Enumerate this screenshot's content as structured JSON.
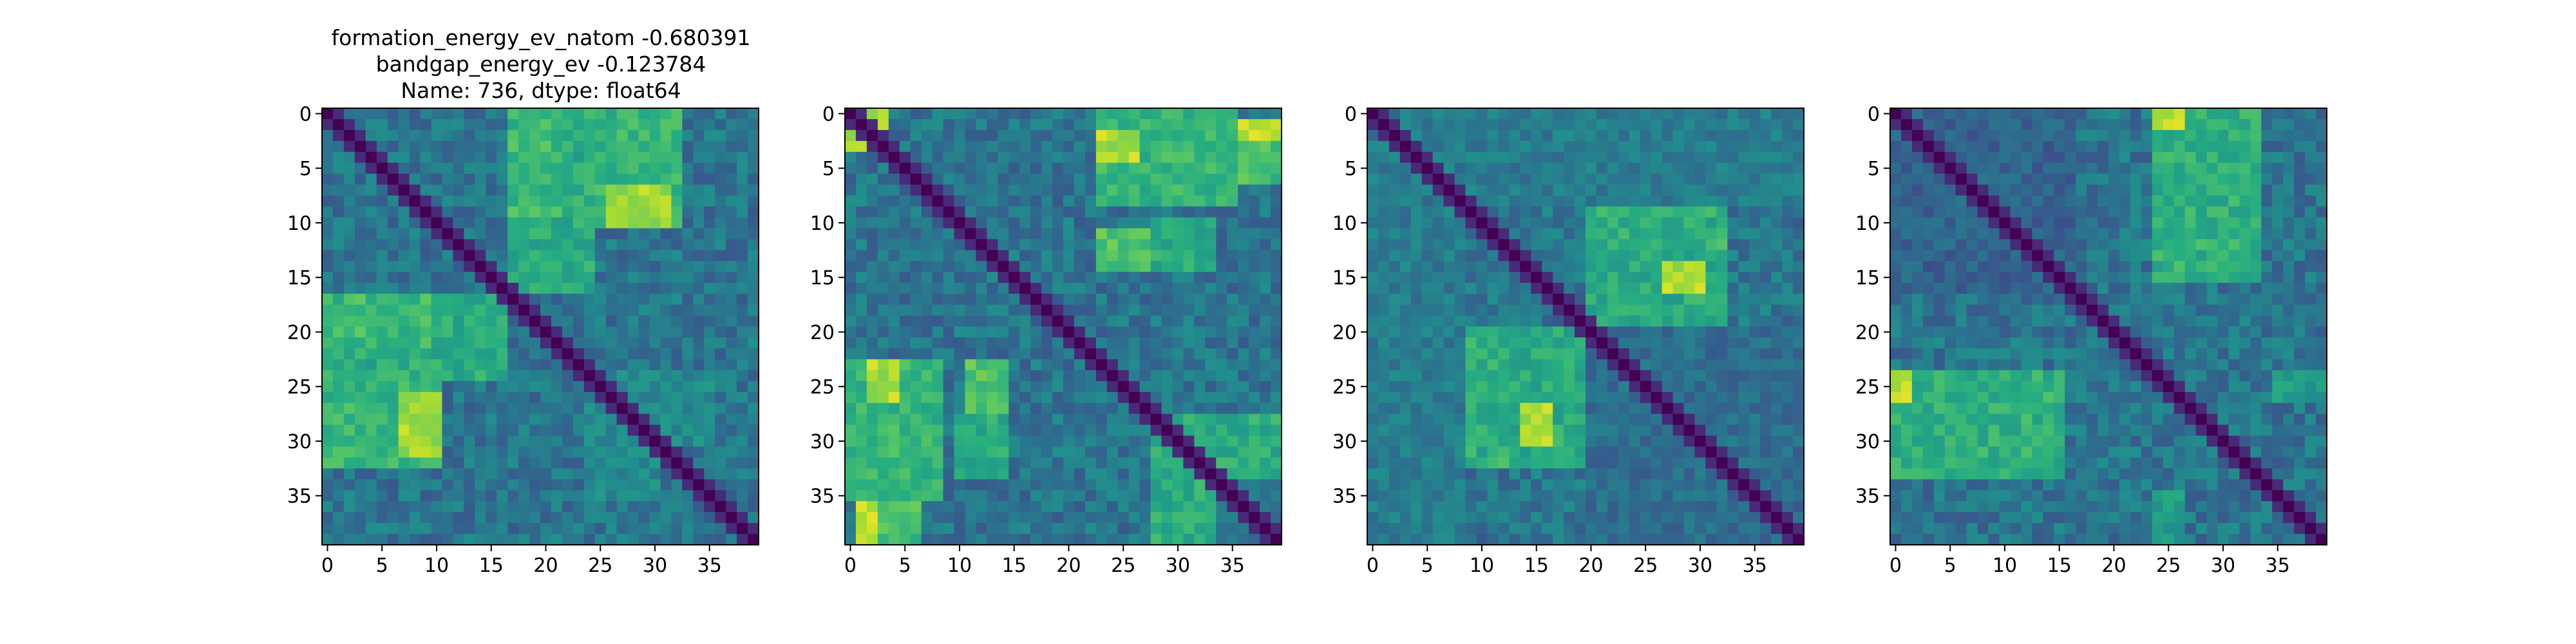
{
  "figure": {
    "title_lines": [
      "formation_energy_ev_natom   -0.680391",
      "bandgap_energy_ev          -0.123784",
      "Name: 736, dtype: float64"
    ]
  },
  "chart_data": [
    {
      "type": "heatmap",
      "title": "formation_energy_ev_natom   -0.680391\nbandgap_energy_ev          -0.123784\nName: 736, dtype: float64",
      "size": 40,
      "x_ticks": [
        0,
        5,
        10,
        15,
        20,
        25,
        30,
        35
      ],
      "y_ticks": [
        0,
        5,
        10,
        15,
        20,
        25,
        30,
        35
      ],
      "xlim": [
        -0.5,
        39.5
      ],
      "ylim": [
        39.5,
        -0.5
      ],
      "colormap": "viridis",
      "vmin": 0,
      "vmax": 1,
      "diagonal": 0,
      "blocks": [
        {
          "rows": [
            0,
            16
          ],
          "cols": [
            17,
            24
          ],
          "value": 0.62
        },
        {
          "rows": [
            4,
            9
          ],
          "cols": [
            27,
            32
          ],
          "value": 0.78
        },
        {
          "rows": [
            7,
            9
          ],
          "cols": [
            29,
            31
          ],
          "value": 0.95
        },
        {
          "rows": [
            17,
            21
          ],
          "cols": [
            0,
            9
          ],
          "value": 0.68
        },
        {
          "rows": [
            24,
            32
          ],
          "cols": [
            0,
            10
          ],
          "value": 0.66
        },
        {
          "rows": [
            26,
            31
          ],
          "cols": [
            7,
            10
          ],
          "value": 0.85
        },
        {
          "rows": [
            24,
            30
          ],
          "cols": [
            26,
            35
          ],
          "value": 0.48
        }
      ]
    },
    {
      "type": "heatmap",
      "title": "",
      "size": 40,
      "x_ticks": [
        0,
        5,
        10,
        15,
        20,
        25,
        30,
        35
      ],
      "y_ticks": [
        0,
        5,
        10,
        15,
        20,
        25,
        30,
        35
      ],
      "xlim": [
        -0.5,
        39.5
      ],
      "ylim": [
        39.5,
        -0.5
      ],
      "colormap": "viridis",
      "vmin": 0,
      "vmax": 1,
      "diagonal": 0,
      "blocks": [
        {
          "rows": [
            0,
            3
          ],
          "cols": [
            0,
            3
          ],
          "value": 0.85
        },
        {
          "rows": [
            1,
            2
          ],
          "cols": [
            23,
            39
          ],
          "value": 0.9
        },
        {
          "rows": [
            3,
            6
          ],
          "cols": [
            23,
            39
          ],
          "value": 0.7
        },
        {
          "rows": [
            11,
            14
          ],
          "cols": [
            23,
            32
          ],
          "value": 0.72
        },
        {
          "rows": [
            23,
            35
          ],
          "cols": [
            0,
            8
          ],
          "value": 0.66
        },
        {
          "rows": [
            23,
            26
          ],
          "cols": [
            2,
            4
          ],
          "value": 0.88
        },
        {
          "rows": [
            28,
            33
          ],
          "cols": [
            10,
            14
          ],
          "value": 0.62
        },
        {
          "rows": [
            28,
            33
          ],
          "cols": [
            29,
            39
          ],
          "value": 0.62
        }
      ]
    },
    {
      "type": "heatmap",
      "title": "",
      "size": 40,
      "x_ticks": [
        0,
        5,
        10,
        15,
        20,
        25,
        30,
        35
      ],
      "y_ticks": [
        0,
        5,
        10,
        15,
        20,
        25,
        30,
        35
      ],
      "xlim": [
        -0.5,
        39.5
      ],
      "ylim": [
        39.5,
        -0.5
      ],
      "colormap": "viridis",
      "vmin": 0,
      "vmax": 1,
      "diagonal": 0,
      "blocks": [
        {
          "rows": [
            9,
            19
          ],
          "cols": [
            20,
            32
          ],
          "value": 0.66
        },
        {
          "rows": [
            13,
            17
          ],
          "cols": [
            27,
            30
          ],
          "value": 0.88
        },
        {
          "rows": [
            20,
            31
          ],
          "cols": [
            10,
            20
          ],
          "value": 0.62
        },
        {
          "rows": [
            27,
            30
          ],
          "cols": [
            14,
            16
          ],
          "value": 0.88
        },
        {
          "rows": [
            0,
            8
          ],
          "cols": [
            0,
            39
          ],
          "value": 0.42
        },
        {
          "rows": [
            20,
            39
          ],
          "cols": [
            20,
            39
          ],
          "value": 0.36
        }
      ]
    },
    {
      "type": "heatmap",
      "title": "",
      "size": 40,
      "x_ticks": [
        0,
        5,
        10,
        15,
        20,
        25,
        30,
        35
      ],
      "y_ticks": [
        0,
        5,
        10,
        15,
        20,
        25,
        30,
        35
      ],
      "xlim": [
        -0.5,
        39.5
      ],
      "ylim": [
        39.5,
        -0.5
      ],
      "colormap": "viridis",
      "vmin": 0,
      "vmax": 1,
      "diagonal": 0,
      "blocks": [
        {
          "rows": [
            0,
            15
          ],
          "cols": [
            24,
            33
          ],
          "value": 0.64
        },
        {
          "rows": [
            0,
            2
          ],
          "cols": [
            24,
            25
          ],
          "value": 0.92
        },
        {
          "rows": [
            24,
            32
          ],
          "cols": [
            0,
            15
          ],
          "value": 0.64
        },
        {
          "rows": [
            24,
            26
          ],
          "cols": [
            0,
            1
          ],
          "value": 0.92
        },
        {
          "rows": [
            24,
            26
          ],
          "cols": [
            35,
            39
          ],
          "value": 0.55
        },
        {
          "rows": [
            0,
            15
          ],
          "cols": [
            0,
            16
          ],
          "value": 0.32
        }
      ]
    }
  ]
}
